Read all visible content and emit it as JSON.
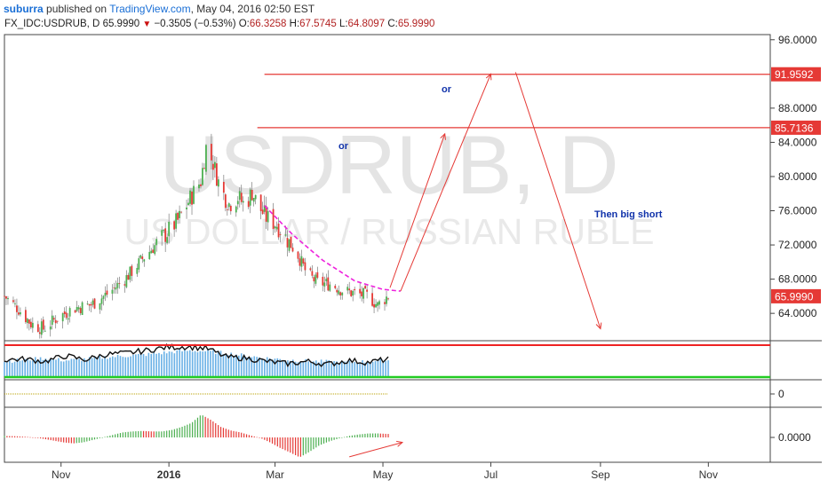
{
  "header": {
    "author": "suburra",
    "published_text": "published on",
    "site": "TradingView.com",
    "datetime": ", May 04, 2016 02:50 EST"
  },
  "ohlc_bar": {
    "symbol": "FX_IDC:USDRUB, D",
    "last": "65.9990",
    "change": "−0.3505 (−0.53%)",
    "o_label": "O:",
    "o": "66.3258",
    "h_label": "H:",
    "h": "67.5745",
    "l_label": "L:",
    "l": "64.8097",
    "c_label": "C:",
    "c": "65.9990"
  },
  "watermark": {
    "symbol": "USDRUB, D",
    "name": "US DOLLAR / RUSSIAN RUBLE"
  },
  "annotations": {
    "or_upper": "or",
    "or_lower": "or",
    "big_short": "Then big short"
  },
  "colors": {
    "up": "#4caf50",
    "down": "#e53935",
    "target_line": "#e53935",
    "curve": "#ee22dd",
    "arrow": "#e53935"
  },
  "chart_data": [
    {
      "type": "candlestick",
      "title": "FX_IDC:USDRUB, D",
      "x_axis": {
        "ticks": [
          "Nov",
          "2016",
          "Mar",
          "May",
          "Jul",
          "Sep",
          "Nov"
        ],
        "start": "2015-09-30",
        "end": "2016-12-06"
      },
      "y_axis": {
        "ticks": [
          64,
          68,
          72,
          76,
          80,
          84,
          88,
          96
        ],
        "tick_labels": [
          "64.0000",
          "68.0000",
          "72.0000",
          "76.0000",
          "80.0000",
          "84.0000",
          "88.0000",
          "96.0000"
        ],
        "range": [
          60.8,
          96.6
        ]
      },
      "last_price": {
        "value": 65.999,
        "label": "65.9990"
      },
      "levels": [
        {
          "label": "91.9592",
          "value": 91.9592,
          "from": "2016-02-24"
        },
        {
          "label": "85.7136",
          "value": 85.7136,
          "from": "2016-02-20"
        }
      ],
      "series": [
        {
          "kind": "close_path",
          "points": [
            [
              "2015-09-30",
              66.0
            ],
            [
              "2015-10-08",
              64.5
            ],
            [
              "2015-10-15",
              62.8
            ],
            [
              "2015-10-22",
              62.2
            ],
            [
              "2015-10-30",
              63.5
            ],
            [
              "2015-11-08",
              64.6
            ],
            [
              "2015-11-18",
              65.0
            ],
            [
              "2015-11-28",
              66.4
            ],
            [
              "2015-12-08",
              68.2
            ],
            [
              "2015-12-18",
              70.6
            ],
            [
              "2015-12-28",
              72.8
            ],
            [
              "2016-01-06",
              74.8
            ],
            [
              "2016-01-14",
              77.8
            ],
            [
              "2016-01-19",
              79.5
            ],
            [
              "2016-01-22",
              83.4
            ],
            [
              "2016-01-26",
              81.6
            ],
            [
              "2016-01-30",
              78.6
            ],
            [
              "2016-02-04",
              76.8
            ],
            [
              "2016-02-09",
              77.6
            ],
            [
              "2016-02-13",
              76.6
            ],
            [
              "2016-02-17",
              78.2
            ],
            [
              "2016-02-21",
              76.4
            ],
            [
              "2016-02-25",
              75.2
            ],
            [
              "2016-03-02",
              74.4
            ],
            [
              "2016-03-08",
              72.6
            ],
            [
              "2016-03-14",
              70.8
            ],
            [
              "2016-03-19",
              68.6
            ],
            [
              "2016-03-25",
              67.6
            ],
            [
              "2016-04-02",
              67.4
            ],
            [
              "2016-04-09",
              66.6
            ],
            [
              "2016-04-16",
              66.3
            ],
            [
              "2016-04-23",
              66.0
            ],
            [
              "2016-04-28",
              64.9
            ],
            [
              "2016-05-01",
              65.6
            ],
            [
              "2016-05-04",
              66.0
            ]
          ]
        },
        {
          "kind": "projection_curve",
          "name": "",
          "points": [
            [
              "2016-02-24",
              76.6
            ],
            [
              "2016-03-11",
              73.2
            ],
            [
              "2016-03-28",
              70.2
            ],
            [
              "2016-04-15",
              67.8
            ],
            [
              "2016-05-01",
              66.8
            ],
            [
              "2016-05-11",
              66.6
            ]
          ]
        },
        {
          "kind": "arrow",
          "name": "",
          "from": [
            "2016-05-05",
            67.0
          ],
          "to": [
            "2016-06-05",
            85.0
          ]
        },
        {
          "kind": "arrow",
          "name": "",
          "from": [
            "2016-05-11",
            66.6
          ],
          "to": [
            "2016-07-01",
            92.0
          ]
        },
        {
          "kind": "arrow",
          "name": "",
          "from": [
            "2016-07-15",
            92.2
          ],
          "to": [
            "2016-09-01",
            62.2
          ]
        }
      ]
    },
    {
      "type": "area",
      "title": "",
      "y_axis": {
        "tick_labels": [],
        "range": [
          0,
          1
        ]
      },
      "series": [
        {
          "kind": "histogram",
          "color": "#6ab1e6",
          "values": [
            0.45,
            0.5,
            0.55,
            0.48,
            0.52,
            0.58,
            0.62,
            0.66,
            0.72,
            0.78,
            0.76,
            0.7,
            0.62,
            0.55,
            0.5,
            0.46,
            0.44,
            0.42,
            0.45,
            0.48
          ]
        },
        {
          "kind": "line",
          "color": "#111111",
          "values": [
            0.5,
            0.52,
            0.45,
            0.62,
            0.5,
            0.66,
            0.7,
            0.78,
            0.88,
            0.9,
            0.85,
            0.58,
            0.55,
            0.45,
            0.38,
            0.45,
            0.36,
            0.48,
            0.42,
            0.52
          ]
        },
        {
          "kind": "level",
          "color": "#ee2222",
          "value": 1.0
        },
        {
          "kind": "level",
          "color": "#22cc22",
          "value": 0.0
        }
      ]
    },
    {
      "type": "line",
      "title": "",
      "y_axis": {
        "tick_labels": [
          "0"
        ],
        "range": [
          -1,
          1
        ]
      },
      "series": [
        {
          "kind": "dotted_line",
          "color": "#b8a000",
          "value": 0
        }
      ]
    },
    {
      "type": "bar",
      "title": "",
      "y_axis": {
        "tick_labels": [
          "0.0000"
        ],
        "range": [
          -1,
          1
        ]
      },
      "series": [
        {
          "kind": "histogram",
          "values": [
            0.06,
            0.05,
            0.03,
            0.0,
            -0.06,
            -0.13,
            -0.2,
            -0.24,
            -0.2,
            -0.1,
            0.0,
            0.1,
            0.2,
            0.24,
            0.26,
            0.24,
            0.24,
            0.3,
            0.42,
            0.58,
            0.92,
            0.7,
            0.42,
            0.28,
            0.2,
            0.08,
            -0.02,
            -0.2,
            -0.42,
            -0.6,
            -0.8,
            -0.58,
            -0.32,
            -0.16,
            -0.04,
            0.06,
            0.12,
            0.16,
            0.16,
            0.14
          ]
        },
        {
          "kind": "arrow",
          "from": [
            "2016-04-12",
            -0.78
          ],
          "to": [
            "2016-05-12",
            -0.2
          ]
        }
      ]
    }
  ]
}
